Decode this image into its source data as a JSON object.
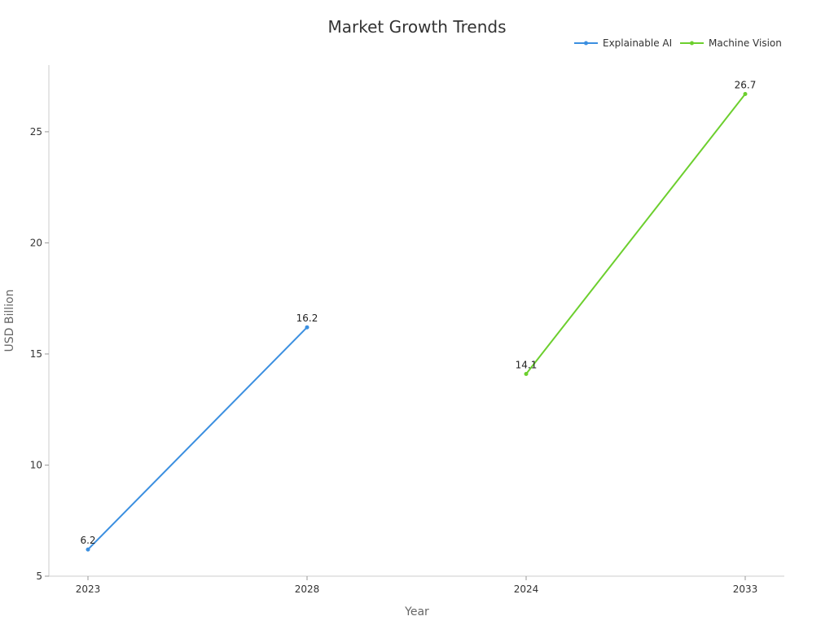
{
  "chart_data": {
    "type": "line",
    "title": "Market Growth Trends",
    "xlabel": "Year",
    "ylabel": "USD Billion",
    "categories": [
      "2023",
      "2028",
      "2024",
      "2033"
    ],
    "ylim": [
      5,
      28
    ],
    "yticks": [
      5,
      10,
      15,
      20,
      25
    ],
    "grid": false,
    "legend_position": "top-right",
    "series": [
      {
        "name": "Explainable AI",
        "color": "#3b8fe0",
        "points": [
          {
            "x": "2023",
            "y": 6.2,
            "label": "6.2"
          },
          {
            "x": "2028",
            "y": 16.2,
            "label": "16.2"
          }
        ]
      },
      {
        "name": "Machine Vision",
        "color": "#6ccf2e",
        "points": [
          {
            "x": "2024",
            "y": 14.1,
            "label": "14.1"
          },
          {
            "x": "2033",
            "y": 26.7,
            "label": "26.7"
          }
        ]
      }
    ]
  }
}
